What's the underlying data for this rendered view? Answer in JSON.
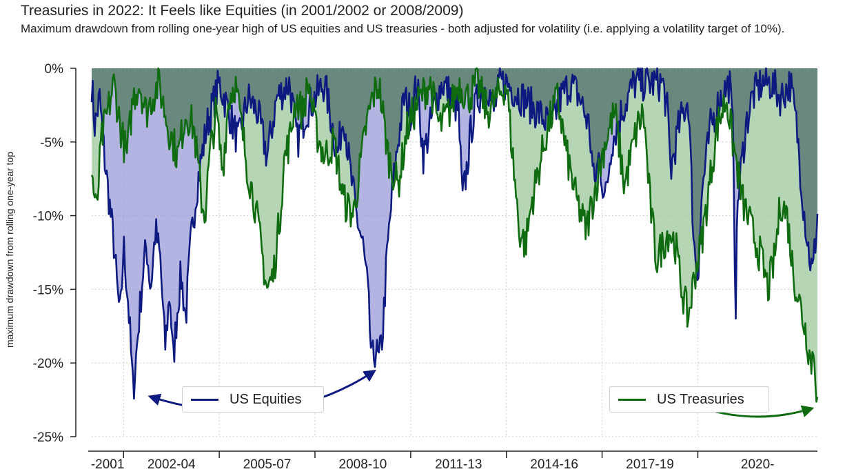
{
  "colors": {
    "equities": "#0d1a80",
    "treasuries": "#0f6b0f",
    "equities_fill": "#9b9bd8",
    "treasuries_fill": "#9cc79c",
    "overlap_fill": "#5f7f75"
  },
  "chart_data": {
    "type": "area",
    "title": "Treasuries in 2022: It Feels like Equities (in 2001/2002 or 2008/2009)",
    "subtitle": "Maximum drawdown from rolling one-year high of US equities and US treasuries - both adjusted for volatility (i.e. applying a volatility target of 10%).",
    "xlabel": "",
    "ylabel": "maximum drawdown from rolling one-year top",
    "categories": [
      "-2001",
      "2002-04",
      "2005-07",
      "2008-10",
      "2011-13",
      "2014-16",
      "2017-19",
      "2020-"
    ],
    "y_ticks": [
      "0%",
      "-5%",
      "-10%",
      "-15%",
      "-20%",
      "-25%"
    ],
    "ylim": [
      -25,
      0
    ],
    "xlim": [
      2000.0,
      2022.75
    ],
    "grid": true,
    "legend": "inside, bottom-left and bottom-right",
    "series": [
      {
        "name": "US Equities",
        "x": [
          2000.0,
          2000.1,
          2000.25,
          2000.4,
          2000.55,
          2000.7,
          2000.8,
          2000.9,
          2001.0,
          2001.15,
          2001.3,
          2001.45,
          2001.6,
          2001.72,
          2001.85,
          2002.0,
          2002.15,
          2002.3,
          2002.45,
          2002.55,
          2002.7,
          2002.8,
          2002.95,
          2003.1,
          2003.3,
          2003.6,
          2004.0,
          2004.3,
          2004.6,
          2004.9,
          2005.2,
          2005.5,
          2005.8,
          2006.2,
          2006.45,
          2006.7,
          2007.0,
          2007.3,
          2007.55,
          2007.7,
          2007.9,
          2008.1,
          2008.3,
          2008.5,
          2008.65,
          2008.78,
          2008.9,
          2009.0,
          2009.12,
          2009.25,
          2009.4,
          2009.6,
          2009.8,
          2010.0,
          2010.2,
          2010.4,
          2010.6,
          2010.8,
          2011.0,
          2011.3,
          2011.5,
          2011.62,
          2011.75,
          2011.9,
          2012.1,
          2012.4,
          2012.6,
          2012.8,
          2013.0,
          2013.5,
          2014.0,
          2014.4,
          2014.7,
          2015.0,
          2015.3,
          2015.6,
          2015.75,
          2015.9,
          2016.1,
          2016.3,
          2016.6,
          2017.0,
          2017.5,
          2017.9,
          2018.05,
          2018.15,
          2018.4,
          2018.7,
          2018.88,
          2019.0,
          2019.15,
          2019.4,
          2019.7,
          2020.0,
          2020.12,
          2020.18,
          2020.25,
          2020.35,
          2020.5,
          2020.7,
          2021.0,
          2021.3,
          2021.6,
          2021.9,
          2022.1,
          2022.3,
          2022.45,
          2022.6,
          2022.75
        ],
        "y": [
          -1,
          -4,
          -2,
          -6,
          -9,
          -12,
          -15,
          -17,
          -12,
          -16,
          -22,
          -18,
          -14,
          -12,
          -15,
          -11,
          -13,
          -19,
          -15,
          -20,
          -16,
          -14,
          -17,
          -12,
          -8,
          -4,
          -1,
          -3,
          -5,
          -2,
          -3,
          -6,
          -2,
          -1,
          -5,
          -3,
          -2,
          -1,
          -4,
          -6,
          -3,
          -7,
          -10,
          -12,
          -15,
          -20,
          -19,
          -20,
          -18,
          -13,
          -9,
          -5,
          -2,
          -3,
          -1,
          -6,
          -4,
          -2,
          -1,
          -2,
          -3,
          -9,
          -7,
          -4,
          -2,
          -1,
          -3,
          -1,
          -1,
          -2,
          -3,
          -4,
          -2,
          -1,
          -2,
          -4,
          -8,
          -6,
          -9,
          -5,
          -3,
          -1,
          -1,
          -1,
          -3,
          -7,
          -4,
          -2,
          -12,
          -14,
          -8,
          -4,
          -2,
          -1,
          -5,
          -17,
          -9,
          -7,
          -4,
          -2,
          -1,
          -1,
          -2,
          -1,
          -4,
          -9,
          -12,
          -14,
          -10
        ]
      },
      {
        "name": "US Treasuries",
        "x": [
          2000.0,
          2000.15,
          2000.3,
          2000.5,
          2000.7,
          2000.9,
          2001.1,
          2001.3,
          2001.5,
          2001.7,
          2001.9,
          2002.1,
          2002.4,
          2002.7,
          2002.95,
          2003.2,
          2003.45,
          2003.55,
          2003.7,
          2003.9,
          2004.1,
          2004.3,
          2004.5,
          2004.7,
          2004.9,
          2005.1,
          2005.3,
          2005.5,
          2005.7,
          2005.9,
          2006.05,
          2006.2,
          2006.4,
          2006.6,
          2006.8,
          2007.0,
          2007.3,
          2007.6,
          2007.9,
          2008.2,
          2008.4,
          2008.6,
          2008.8,
          2009.0,
          2009.3,
          2009.6,
          2009.9,
          2010.1,
          2010.3,
          2010.6,
          2010.9,
          2011.2,
          2011.5,
          2011.8,
          2012.1,
          2012.4,
          2012.7,
          2013.0,
          2013.2,
          2013.4,
          2013.6,
          2013.8,
          2014.0,
          2014.3,
          2014.6,
          2014.9,
          2015.2,
          2015.5,
          2015.8,
          2016.1,
          2016.4,
          2016.7,
          2016.9,
          2017.1,
          2017.3,
          2017.5,
          2017.7,
          2017.9,
          2018.1,
          2018.3,
          2018.5,
          2018.7,
          2018.9,
          2019.1,
          2019.3,
          2019.6,
          2019.9,
          2020.1,
          2020.4,
          2020.7,
          2021.0,
          2021.2,
          2021.4,
          2021.6,
          2021.8,
          2022.0,
          2022.2,
          2022.4,
          2022.55,
          2022.65,
          2022.75
        ],
        "y": [
          -7,
          -10,
          -5,
          -3,
          -1,
          -4,
          -6,
          -2,
          -1,
          -3,
          -2,
          -1,
          -4,
          -6,
          -3,
          -4,
          -9,
          -10,
          -6,
          -3,
          -7,
          -2,
          -1,
          -4,
          -7,
          -9,
          -12,
          -15,
          -14,
          -10,
          -6,
          -5,
          -2,
          -3,
          -1,
          -4,
          -6,
          -5,
          -9,
          -10,
          -7,
          -4,
          -2,
          -1,
          -6,
          -8,
          -4,
          -3,
          -2,
          -1,
          -4,
          -3,
          -1,
          -2,
          -1,
          -3,
          -2,
          -1,
          -6,
          -11,
          -12,
          -9,
          -7,
          -4,
          -2,
          -6,
          -9,
          -11,
          -8,
          -5,
          -3,
          -8,
          -6,
          -4,
          -3,
          -9,
          -13,
          -12,
          -11,
          -12,
          -15,
          -17,
          -14,
          -12,
          -9,
          -4,
          -2,
          -5,
          -9,
          -11,
          -13,
          -15,
          -13,
          -9,
          -10,
          -14,
          -16,
          -18,
          -20,
          -19,
          -23
        ]
      }
    ],
    "annotations": [
      "curved arrow linking the 2001/02 and 2008/09 equity troughs",
      "curved arrow pointing to the 2022 treasury trough"
    ]
  }
}
